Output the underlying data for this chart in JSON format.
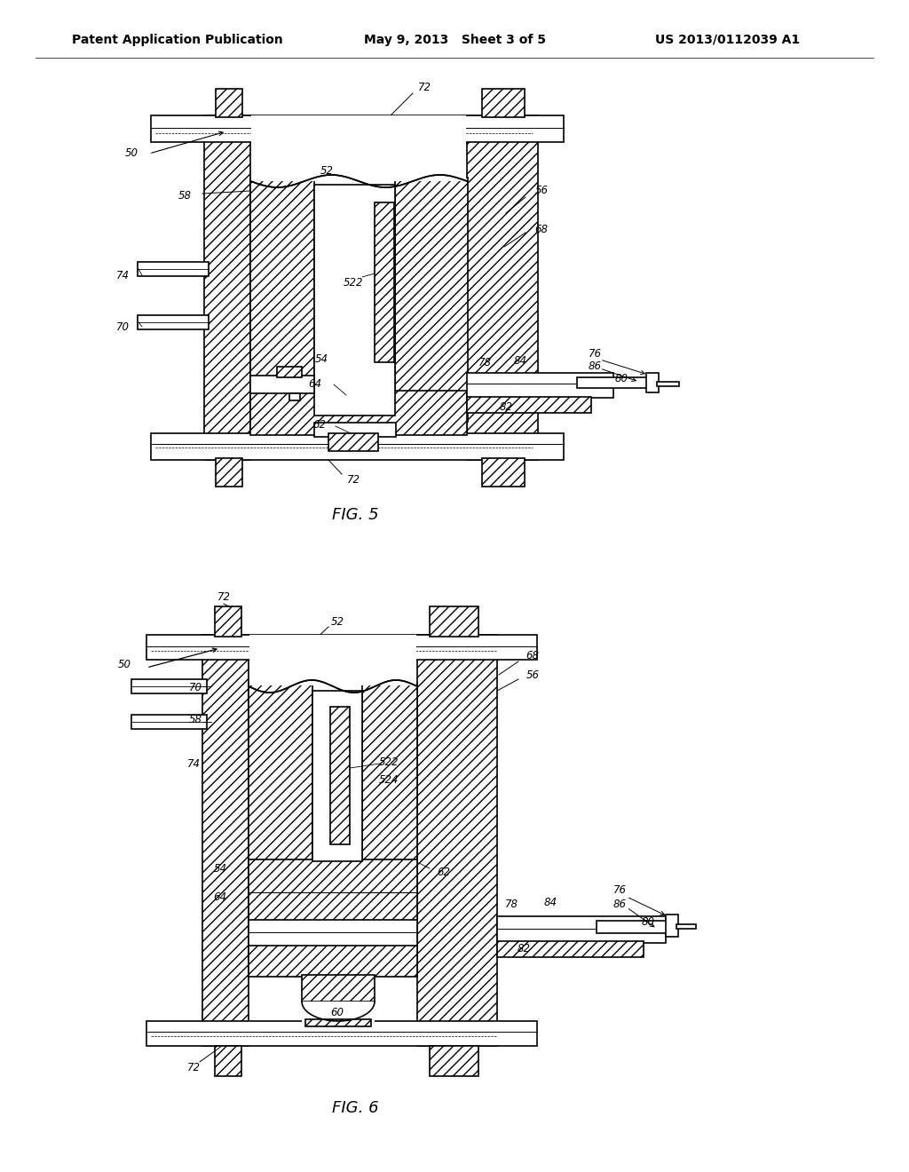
{
  "header_left": "Patent Application Publication",
  "header_mid": "May 9, 2013   Sheet 3 of 5",
  "header_right": "US 2013/0112039 A1",
  "fig5_title": "FIG. 5",
  "fig6_title": "FIG. 6",
  "bg_color": "#ffffff"
}
